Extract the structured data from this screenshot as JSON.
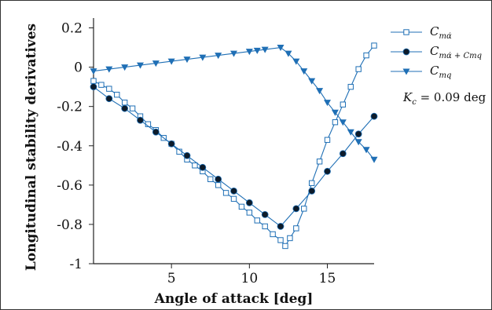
{
  "chart_data": {
    "type": "line",
    "xlabel": "Angle of attack [deg]",
    "ylabel": "Longitudinal stability derivatives",
    "xlim": [
      0,
      18
    ],
    "ylim": [
      -1,
      0.25
    ],
    "xticks": [
      5,
      10,
      15
    ],
    "xtick_labels": [
      "5",
      "10",
      "15"
    ],
    "yticks": [
      0.2,
      0,
      -0.2,
      -0.4,
      -0.6,
      -0.8,
      -1
    ],
    "ytick_labels": [
      "0.2",
      "0",
      "-0.2",
      "-0.4",
      "-0.6",
      "-0.8",
      "-1"
    ],
    "grid": false,
    "legend_position": "right",
    "annotation": {
      "main": "K",
      "sub": "c",
      "rest": " = 0.09 deg"
    },
    "series": [
      {
        "legend_main": "C",
        "legend_sub": "mα̇",
        "marker": "square-open",
        "color": "#1f6fb5",
        "x": [
          0,
          0.5,
          1,
          1.5,
          2,
          2.5,
          3,
          3.5,
          4,
          4.5,
          5,
          5.5,
          6,
          6.5,
          7,
          7.5,
          8,
          8.5,
          9,
          9.5,
          10,
          10.5,
          11,
          11.5,
          12,
          12.3,
          12.6,
          13,
          13.5,
          14,
          14.5,
          15,
          15.5,
          16,
          16.5,
          17,
          17.5,
          18
        ],
        "y": [
          -0.07,
          -0.09,
          -0.11,
          -0.14,
          -0.18,
          -0.21,
          -0.25,
          -0.29,
          -0.32,
          -0.36,
          -0.39,
          -0.43,
          -0.47,
          -0.5,
          -0.53,
          -0.57,
          -0.6,
          -0.64,
          -0.67,
          -0.71,
          -0.74,
          -0.78,
          -0.81,
          -0.85,
          -0.88,
          -0.91,
          -0.87,
          -0.82,
          -0.72,
          -0.59,
          -0.48,
          -0.37,
          -0.28,
          -0.19,
          -0.1,
          -0.01,
          0.06,
          0.11
        ]
      },
      {
        "legend_main": "C",
        "legend_sub": "mα̇ + Cmq",
        "marker": "circle-filled",
        "color": "#1f6fb5",
        "x": [
          0,
          1,
          2,
          3,
          4,
          5,
          6,
          7,
          8,
          9,
          10,
          11,
          12,
          13,
          14,
          15,
          16,
          17,
          18
        ],
        "y": [
          -0.1,
          -0.16,
          -0.21,
          -0.27,
          -0.33,
          -0.39,
          -0.45,
          -0.51,
          -0.57,
          -0.63,
          -0.69,
          -0.75,
          -0.81,
          -0.72,
          -0.63,
          -0.53,
          -0.44,
          -0.34,
          -0.25
        ]
      },
      {
        "legend_main": "C",
        "legend_sub": "mq",
        "marker": "triangle-down-filled",
        "color": "#1f6fb5",
        "x": [
          0,
          1,
          2,
          3,
          4,
          5,
          6,
          7,
          8,
          9,
          10,
          10.5,
          11,
          12,
          12.5,
          13,
          13.5,
          14,
          14.5,
          15,
          15.5,
          16,
          16.5,
          17,
          17.5,
          18
        ],
        "y": [
          -0.02,
          -0.01,
          0.0,
          0.01,
          0.02,
          0.03,
          0.04,
          0.05,
          0.06,
          0.07,
          0.08,
          0.085,
          0.09,
          0.1,
          0.07,
          0.03,
          -0.02,
          -0.07,
          -0.12,
          -0.18,
          -0.23,
          -0.28,
          -0.33,
          -0.38,
          -0.42,
          -0.47
        ]
      }
    ]
  }
}
